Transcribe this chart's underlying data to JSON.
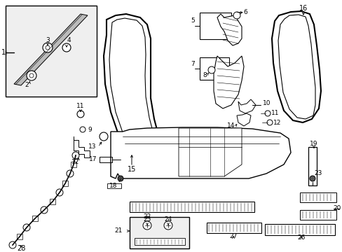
{
  "bg": "#ffffff",
  "lc": "#000000",
  "gray_box": "#efefef",
  "figsize": [
    4.89,
    3.6
  ],
  "dpi": 100
}
